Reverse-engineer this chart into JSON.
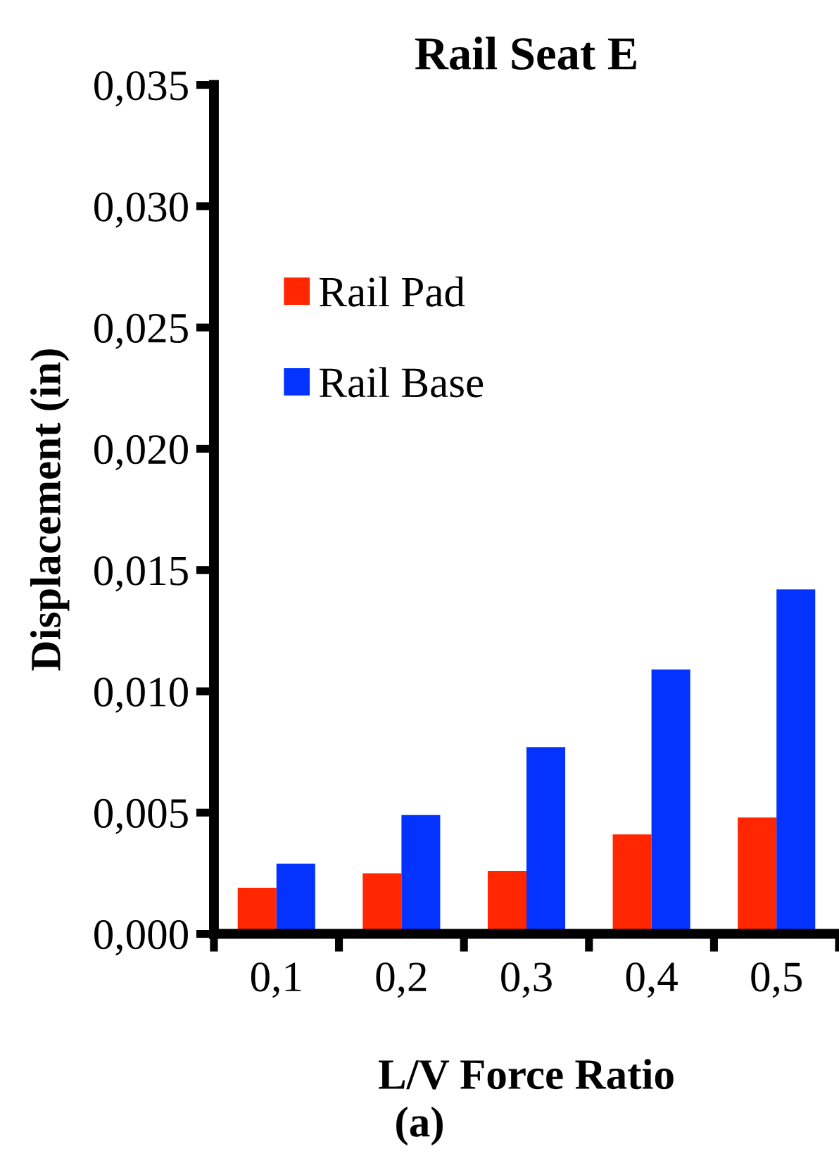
{
  "chart_data": {
    "type": "bar",
    "title": "Rail Seat E",
    "xlabel": "L/V Force Ratio",
    "ylabel": "Displacement (in)",
    "annotations": [
      "(a)"
    ],
    "categories": [
      "0,1",
      "0,2",
      "0,3",
      "0,4",
      "0,5"
    ],
    "series": [
      {
        "name": "Rail Pad",
        "color": "#ff2600",
        "values": [
          0.0019,
          0.0025,
          0.0026,
          0.0041,
          0.0048
        ]
      },
      {
        "name": "Rail Base",
        "color": "#0433ff",
        "values": [
          0.0029,
          0.0049,
          0.0077,
          0.0109,
          0.0142
        ]
      }
    ],
    "ylim": [
      0,
      0.035
    ],
    "yticks": [
      {
        "value": 0,
        "label": "0,000"
      },
      {
        "value": 0.005,
        "label": "0,005"
      },
      {
        "value": 0.01,
        "label": "0,010"
      },
      {
        "value": 0.015,
        "label": "0,015"
      },
      {
        "value": 0.02,
        "label": "0,020"
      },
      {
        "value": 0.025,
        "label": "0,025"
      },
      {
        "value": 0.03,
        "label": "0,030"
      },
      {
        "value": 0.035,
        "label": "0,035"
      }
    ],
    "grid": false,
    "legend": "top left"
  }
}
